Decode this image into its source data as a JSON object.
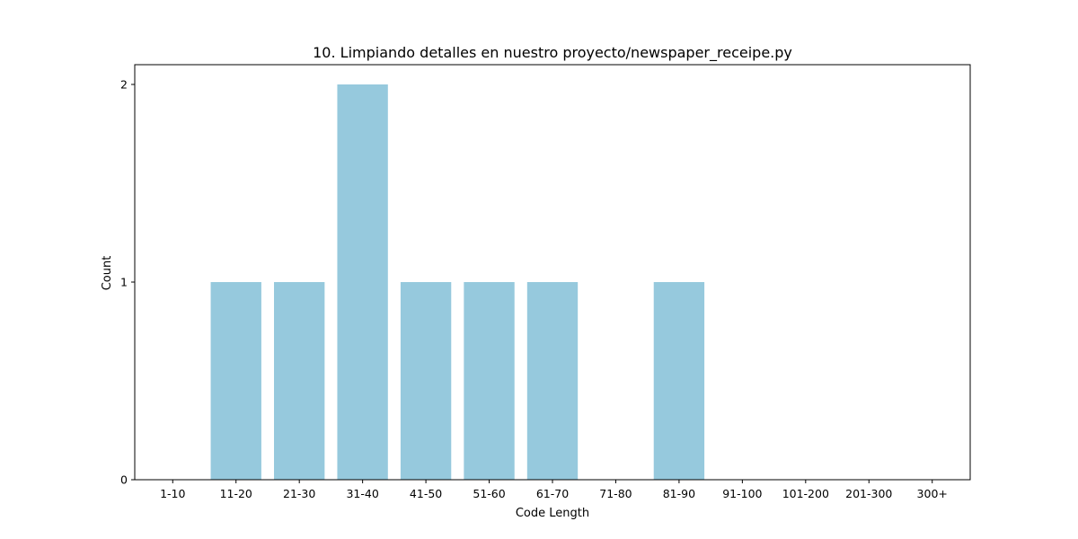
{
  "chart_data": {
    "type": "bar",
    "title": "10. Limpiando detalles en nuestro proyecto/newspaper_receipe.py",
    "xlabel": "Code Length",
    "ylabel": "Count",
    "categories": [
      "1-10",
      "11-20",
      "21-30",
      "31-40",
      "41-50",
      "51-60",
      "61-70",
      "71-80",
      "81-90",
      "91-100",
      "101-200",
      "201-300",
      "300+"
    ],
    "values": [
      0,
      1,
      1,
      2,
      1,
      1,
      1,
      0,
      1,
      0,
      0,
      0,
      0
    ],
    "ylim": [
      0,
      2.1
    ],
    "yticks": [
      "0",
      "1",
      "2"
    ],
    "grid": false,
    "bar_color": "#96c9dd"
  }
}
